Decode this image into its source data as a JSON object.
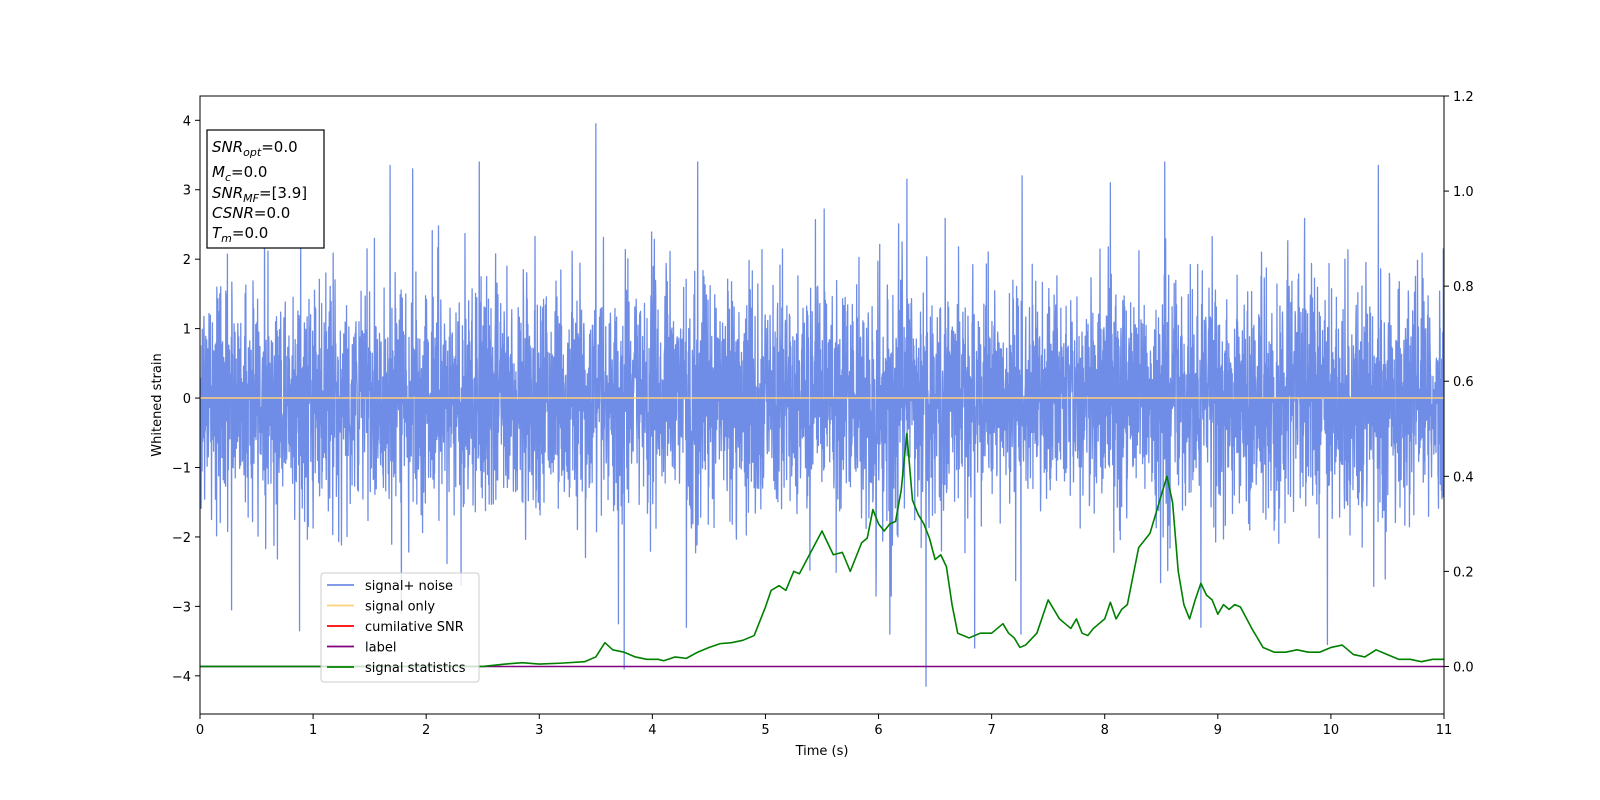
{
  "chart_data": {
    "type": "line",
    "xlabel": "Time (s)",
    "ylabel": "Whitened strain",
    "xlim": [
      0,
      11
    ],
    "ylim": [
      -4.55,
      4.35
    ],
    "y2lim": [
      -0.1,
      1.2
    ],
    "x_ticks": [
      "0",
      "1",
      "2",
      "3",
      "4",
      "5",
      "6",
      "7",
      "8",
      "9",
      "10",
      "11"
    ],
    "y_ticks": [
      "−4",
      "−3",
      "−2",
      "−1",
      "0",
      "1",
      "2",
      "3",
      "4"
    ],
    "y2_ticks": [
      "0.0",
      "0.2",
      "0.4",
      "0.6",
      "0.8",
      "1.0",
      "1.2"
    ],
    "info_box": {
      "snr_opt": {
        "base": "SNR",
        "sub": "opt",
        "value": "=0.0"
      },
      "mc": {
        "base": "M",
        "sub": "c",
        "value": "=0.0"
      },
      "snr_mf": {
        "base": "SNR",
        "sub": "MF",
        "value": "=[3.9]"
      },
      "csnr": {
        "base": "CSNR",
        "value": "=0.0"
      },
      "tm": {
        "base": "T",
        "sub": "m",
        "value": "=0.0"
      }
    },
    "legend": {
      "placement": "lower-left",
      "entries": [
        {
          "label": "signal+ noise",
          "color": "#6f8de6"
        },
        {
          "label": "signal only",
          "color": "#ffd27a"
        },
        {
          "label": "cumilative SNR",
          "color": "#ff0000"
        },
        {
          "label": "label",
          "color": "#800080"
        },
        {
          "label": "signal statistics",
          "color": "#008000"
        }
      ]
    },
    "series": [
      {
        "name": "signal+ noise",
        "axis": "left",
        "color": "#6f8de6",
        "style": "dense whitened-noise trace, roughly gaussian, amplitude ~±2",
        "x_range": [
          0,
          11
        ],
        "notable_peaks": [
          {
            "x": 1.68,
            "y": 3.35
          },
          {
            "x": 1.88,
            "y": 3.3
          },
          {
            "x": 2.47,
            "y": 3.4
          },
          {
            "x": 3.5,
            "y": 3.95
          },
          {
            "x": 4.4,
            "y": 3.4
          },
          {
            "x": 6.25,
            "y": 3.15
          },
          {
            "x": 7.27,
            "y": 3.2
          },
          {
            "x": 8.05,
            "y": 3.1
          },
          {
            "x": 8.53,
            "y": 3.4
          },
          {
            "x": 10.42,
            "y": 3.35
          }
        ],
        "notable_troughs": [
          {
            "x": 0.28,
            "y": -3.05
          },
          {
            "x": 0.88,
            "y": -3.35
          },
          {
            "x": 1.78,
            "y": -3.1
          },
          {
            "x": 3.7,
            "y": -3.25
          },
          {
            "x": 3.75,
            "y": -3.9
          },
          {
            "x": 4.3,
            "y": -3.3
          },
          {
            "x": 6.1,
            "y": -3.4
          },
          {
            "x": 6.42,
            "y": -4.15
          },
          {
            "x": 6.85,
            "y": -3.6
          },
          {
            "x": 7.26,
            "y": -3.4
          },
          {
            "x": 8.85,
            "y": -3.3
          },
          {
            "x": 9.97,
            "y": -3.55
          }
        ]
      },
      {
        "name": "signal only",
        "axis": "left",
        "color": "#ffd27a",
        "x": [
          0,
          11
        ],
        "y": [
          0,
          0
        ]
      },
      {
        "name": "cumilative SNR",
        "axis": "right",
        "color": "#ff0000",
        "x": [],
        "y": []
      },
      {
        "name": "label",
        "axis": "right",
        "color": "#800080",
        "x": [
          0,
          11
        ],
        "y": [
          0,
          0
        ]
      },
      {
        "name": "signal statistics",
        "axis": "right",
        "color": "#008000",
        "x": [
          0,
          0.25,
          0.5,
          1.0,
          1.5,
          2.0,
          2.3,
          2.5,
          2.7,
          2.85,
          3.0,
          3.2,
          3.4,
          3.5,
          3.58,
          3.65,
          3.75,
          3.85,
          3.95,
          4.05,
          4.1,
          4.2,
          4.3,
          4.4,
          4.5,
          4.6,
          4.7,
          4.8,
          4.9,
          5.0,
          5.05,
          5.12,
          5.18,
          5.25,
          5.3,
          5.4,
          5.5,
          5.55,
          5.6,
          5.68,
          5.75,
          5.8,
          5.85,
          5.9,
          5.95,
          6.0,
          6.05,
          6.1,
          6.15,
          6.2,
          6.25,
          6.3,
          6.35,
          6.4,
          6.45,
          6.5,
          6.55,
          6.6,
          6.65,
          6.7,
          6.8,
          6.9,
          7.0,
          7.1,
          7.15,
          7.2,
          7.25,
          7.3,
          7.4,
          7.5,
          7.55,
          7.6,
          7.65,
          7.7,
          7.75,
          7.8,
          7.85,
          7.9,
          8.0,
          8.05,
          8.1,
          8.15,
          8.2,
          8.3,
          8.4,
          8.5,
          8.55,
          8.6,
          8.65,
          8.7,
          8.75,
          8.8,
          8.85,
          8.9,
          8.95,
          9.0,
          9.05,
          9.1,
          9.15,
          9.2,
          9.3,
          9.4,
          9.5,
          9.6,
          9.7,
          9.8,
          9.9,
          10.0,
          10.1,
          10.15,
          10.2,
          10.3,
          10.4,
          10.5,
          10.6,
          10.7,
          10.8,
          10.9,
          11.0
        ],
        "y": [
          0.0,
          0.0,
          0.0,
          0.0,
          0.0,
          0.0,
          0.0,
          0.0,
          0.005,
          0.008,
          0.005,
          0.007,
          0.01,
          0.02,
          0.05,
          0.035,
          0.03,
          0.02,
          0.015,
          0.015,
          0.012,
          0.02,
          0.017,
          0.03,
          0.04,
          0.048,
          0.05,
          0.055,
          0.065,
          0.125,
          0.16,
          0.17,
          0.16,
          0.2,
          0.195,
          0.24,
          0.285,
          0.26,
          0.235,
          0.24,
          0.2,
          0.23,
          0.26,
          0.27,
          0.33,
          0.3,
          0.285,
          0.3,
          0.305,
          0.37,
          0.49,
          0.35,
          0.32,
          0.3,
          0.27,
          0.225,
          0.235,
          0.21,
          0.13,
          0.07,
          0.06,
          0.07,
          0.07,
          0.09,
          0.07,
          0.06,
          0.04,
          0.045,
          0.07,
          0.14,
          0.12,
          0.1,
          0.09,
          0.08,
          0.1,
          0.07,
          0.065,
          0.08,
          0.1,
          0.135,
          0.1,
          0.12,
          0.13,
          0.25,
          0.28,
          0.36,
          0.4,
          0.345,
          0.2,
          0.13,
          0.1,
          0.14,
          0.175,
          0.15,
          0.14,
          0.11,
          0.13,
          0.12,
          0.13,
          0.125,
          0.08,
          0.04,
          0.03,
          0.03,
          0.035,
          0.03,
          0.03,
          0.04,
          0.045,
          0.035,
          0.025,
          0.02,
          0.035,
          0.025,
          0.015,
          0.015,
          0.01,
          0.015,
          0.015
        ]
      }
    ]
  }
}
